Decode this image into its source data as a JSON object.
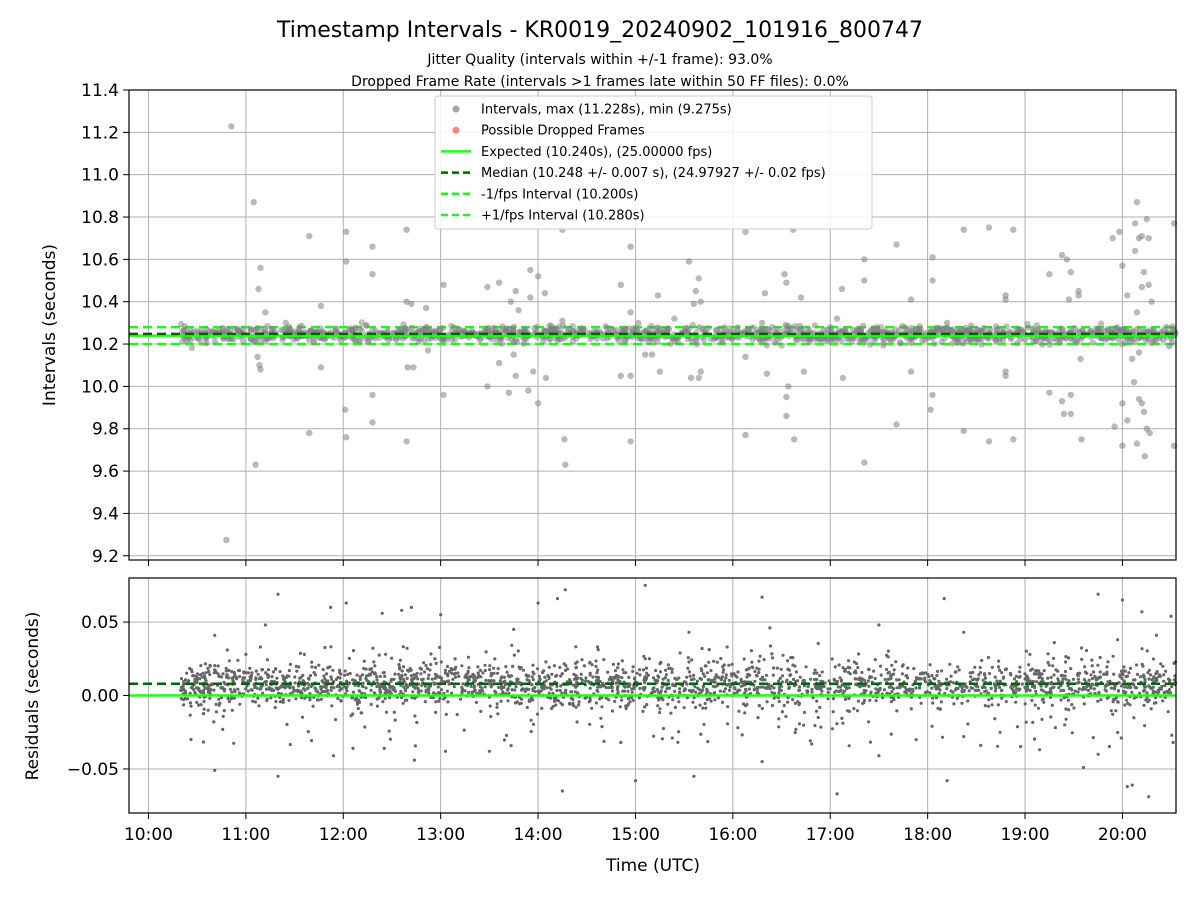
{
  "title": "Timestamp Intervals - KR0019_20240902_101916_800747",
  "subtitle_1": "Jitter Quality (intervals within +/-1 frame): 93.0%",
  "subtitle_2": "Dropped Frame Rate (intervals >1 frames late within 50 FF files): 0.0%",
  "colors": {
    "points": "#808080",
    "dropped": "#ff4d4d",
    "expected": "#1aff1a",
    "median": "#006400",
    "band": "#1aff1a",
    "grid": "#b0b0b0"
  },
  "chart_data": [
    {
      "type": "scatter",
      "id": "intervals",
      "ylabel": "Intervals (seconds)",
      "ylim": [
        9.18,
        11.4
      ],
      "xlim_hours": [
        9.8,
        20.55
      ],
      "yticks": [
        9.2,
        9.4,
        9.6,
        9.8,
        10.0,
        10.2,
        10.4,
        10.6,
        10.8,
        11.0,
        11.2,
        11.4
      ],
      "ytick_labels": [
        "9.2",
        "9.4",
        "9.6",
        "9.8",
        "10.0",
        "10.2",
        "10.4",
        "10.6",
        "10.8",
        "11.0",
        "11.2",
        "11.4"
      ],
      "grid": true,
      "legend_position": "top-center",
      "legend": [
        {
          "label": "Intervals, max (11.228s), min (9.275s)",
          "kind": "dot",
          "color": "#808080"
        },
        {
          "label": "Possible Dropped Frames",
          "kind": "dot",
          "color": "#ff4d4d"
        },
        {
          "label": "Expected (10.240s), (25.00000 fps)",
          "kind": "solid",
          "color": "#1aff1a"
        },
        {
          "label": "Median (10.248 +/- 0.007 s), (24.97927 +/- 0.02 fps)",
          "kind": "dashed",
          "color": "#006400"
        },
        {
          "label": "-1/fps Interval (10.200s)",
          "kind": "dashed",
          "color": "#1aff1a"
        },
        {
          "label": "+1/fps Interval (10.280s)",
          "kind": "dashed",
          "color": "#1aff1a"
        }
      ],
      "hlines": {
        "expected": 10.24,
        "median": 10.248,
        "minus_fps": 10.2,
        "plus_fps": 10.28
      },
      "data_start_hour": 10.33,
      "max_interval": 11.228,
      "min_interval": 9.275,
      "outliers": [
        [
          10.85,
          11.228
        ],
        [
          10.8,
          9.275
        ],
        [
          11.08,
          10.87
        ],
        [
          11.1,
          9.63
        ],
        [
          11.15,
          10.56
        ],
        [
          11.13,
          10.46
        ],
        [
          11.2,
          10.35
        ],
        [
          11.14,
          10.1
        ],
        [
          11.15,
          10.08
        ],
        [
          11.12,
          10.14
        ],
        [
          11.65,
          10.71
        ],
        [
          11.65,
          9.78
        ],
        [
          11.77,
          10.38
        ],
        [
          11.77,
          10.09
        ],
        [
          12.03,
          10.73
        ],
        [
          12.03,
          10.59
        ],
        [
          12.02,
          9.89
        ],
        [
          12.03,
          9.76
        ],
        [
          12.3,
          10.66
        ],
        [
          12.3,
          10.53
        ],
        [
          12.3,
          9.96
        ],
        [
          12.3,
          9.83
        ],
        [
          12.65,
          10.74
        ],
        [
          12.65,
          10.4
        ],
        [
          12.66,
          10.09
        ],
        [
          12.65,
          9.74
        ],
        [
          12.7,
          10.39
        ],
        [
          12.72,
          10.09
        ],
        [
          12.85,
          10.37
        ],
        [
          12.87,
          10.17
        ],
        [
          13.03,
          10.48
        ],
        [
          13.03,
          9.96
        ],
        [
          13.48,
          10.47
        ],
        [
          13.48,
          10.0
        ],
        [
          13.6,
          10.49
        ],
        [
          13.6,
          10.11
        ],
        [
          13.7,
          9.97
        ],
        [
          13.72,
          10.4
        ],
        [
          13.77,
          10.45
        ],
        [
          13.77,
          10.05
        ],
        [
          13.8,
          10.36
        ],
        [
          13.75,
          10.15
        ],
        [
          13.92,
          10.55
        ],
        [
          13.92,
          10.42
        ],
        [
          13.95,
          10.07
        ],
        [
          13.9,
          9.98
        ],
        [
          14.0,
          9.92
        ],
        [
          14.0,
          10.52
        ],
        [
          14.07,
          10.44
        ],
        [
          14.08,
          10.04
        ],
        [
          14.25,
          10.74
        ],
        [
          14.27,
          9.75
        ],
        [
          14.28,
          9.63
        ],
        [
          14.25,
          10.31
        ],
        [
          14.85,
          10.48
        ],
        [
          14.85,
          10.05
        ],
        [
          14.95,
          10.66
        ],
        [
          14.95,
          10.35
        ],
        [
          14.95,
          10.05
        ],
        [
          14.95,
          9.74
        ],
        [
          15.03,
          10.3
        ],
        [
          15.1,
          10.15
        ],
        [
          15.17,
          10.15
        ],
        [
          15.23,
          10.43
        ],
        [
          15.25,
          10.07
        ],
        [
          15.4,
          10.32
        ],
        [
          15.55,
          10.59
        ],
        [
          15.57,
          10.04
        ],
        [
          15.6,
          10.39
        ],
        [
          15.62,
          10.45
        ],
        [
          15.65,
          10.51
        ],
        [
          15.65,
          10.04
        ],
        [
          15.67,
          10.07
        ],
        [
          15.67,
          10.4
        ],
        [
          16.13,
          10.73
        ],
        [
          16.13,
          10.14
        ],
        [
          16.13,
          9.77
        ],
        [
          16.3,
          10.3
        ],
        [
          16.33,
          10.44
        ],
        [
          16.35,
          10.06
        ],
        [
          16.53,
          10.53
        ],
        [
          16.55,
          10.49
        ],
        [
          16.55,
          9.95
        ],
        [
          16.55,
          9.86
        ],
        [
          16.57,
          10.0
        ],
        [
          16.63,
          9.75
        ],
        [
          16.62,
          10.74
        ],
        [
          16.7,
          10.42
        ],
        [
          16.73,
          10.07
        ],
        [
          17.07,
          10.32
        ],
        [
          17.12,
          10.46
        ],
        [
          17.13,
          10.04
        ],
        [
          17.35,
          10.6
        ],
        [
          17.35,
          9.64
        ],
        [
          17.35,
          10.5
        ],
        [
          17.68,
          10.67
        ],
        [
          17.68,
          9.82
        ],
        [
          17.83,
          10.41
        ],
        [
          17.83,
          10.07
        ],
        [
          18.05,
          10.61
        ],
        [
          18.05,
          10.5
        ],
        [
          18.05,
          9.96
        ],
        [
          18.03,
          9.89
        ],
        [
          18.2,
          10.3
        ],
        [
          18.37,
          10.74
        ],
        [
          18.37,
          9.79
        ],
        [
          18.63,
          10.75
        ],
        [
          18.63,
          9.74
        ],
        [
          18.8,
          10.43
        ],
        [
          18.8,
          10.41
        ],
        [
          18.8,
          10.07
        ],
        [
          18.8,
          10.05
        ],
        [
          18.88,
          10.74
        ],
        [
          18.88,
          9.75
        ],
        [
          19.25,
          10.53
        ],
        [
          19.25,
          9.97
        ],
        [
          19.38,
          10.62
        ],
        [
          19.38,
          9.93
        ],
        [
          19.4,
          9.87
        ],
        [
          19.43,
          10.6
        ],
        [
          19.45,
          10.41
        ],
        [
          19.47,
          10.54
        ],
        [
          19.47,
          9.96
        ],
        [
          19.47,
          9.87
        ],
        [
          19.55,
          10.43
        ],
        [
          19.55,
          10.45
        ],
        [
          19.57,
          10.13
        ],
        [
          19.58,
          9.75
        ],
        [
          19.9,
          10.7
        ],
        [
          19.92,
          9.81
        ],
        [
          19.97,
          10.73
        ],
        [
          20.0,
          10.57
        ],
        [
          20.0,
          9.92
        ],
        [
          20.0,
          9.72
        ],
        [
          20.05,
          10.43
        ],
        [
          20.1,
          10.13
        ],
        [
          20.13,
          10.77
        ],
        [
          20.13,
          10.64
        ],
        [
          20.17,
          10.7
        ],
        [
          20.17,
          9.94
        ],
        [
          20.12,
          10.02
        ],
        [
          20.15,
          9.73
        ],
        [
          20.2,
          10.71
        ],
        [
          20.22,
          10.54
        ],
        [
          20.22,
          9.88
        ],
        [
          20.23,
          9.67
        ],
        [
          20.25,
          10.79
        ],
        [
          20.25,
          9.8
        ],
        [
          20.27,
          10.7
        ],
        [
          20.27,
          10.48
        ],
        [
          20.3,
          10.4
        ],
        [
          20.28,
          9.78
        ],
        [
          20.2,
          10.47
        ],
        [
          20.15,
          10.87
        ],
        [
          20.2,
          9.92
        ],
        [
          20.53,
          10.77
        ],
        [
          20.53,
          9.72
        ],
        [
          20.45,
          10.28
        ],
        [
          20.4,
          10.25
        ],
        [
          20.17,
          10.16
        ],
        [
          20.15,
          10.35
        ],
        [
          20.05,
          9.84
        ],
        [
          20.48,
          10.19
        ],
        [
          20.42,
          10.22
        ]
      ],
      "xticks_hours": [
        10,
        11,
        12,
        13,
        14,
        15,
        16,
        17,
        18,
        19,
        20
      ]
    },
    {
      "type": "scatter",
      "id": "residuals",
      "ylabel": "Residuals (seconds)",
      "xlabel": "Time (UTC)",
      "ylim": [
        -0.08,
        0.08
      ],
      "xlim_hours": [
        9.8,
        20.55
      ],
      "yticks": [
        -0.05,
        0.0,
        0.05
      ],
      "ytick_labels": [
        "−0.05",
        "0.00",
        "0.05"
      ],
      "grid": true,
      "hlines": {
        "zero": 0.0,
        "median_offset": 0.008
      },
      "xticks_hours": [
        10,
        11,
        12,
        13,
        14,
        15,
        16,
        17,
        18,
        19,
        20
      ],
      "xtick_labels": [
        "10:00",
        "11:00",
        "12:00",
        "13:00",
        "14:00",
        "15:00",
        "16:00",
        "17:00",
        "18:00",
        "19:00",
        "20:00"
      ],
      "data_start_hour": 10.33,
      "outliers": [
        [
          10.68,
          0.041
        ],
        [
          10.68,
          -0.051
        ],
        [
          11.0,
          0.028
        ],
        [
          11.2,
          0.048
        ],
        [
          11.33,
          0.069
        ],
        [
          11.33,
          -0.055
        ],
        [
          11.87,
          0.06
        ],
        [
          11.9,
          -0.041
        ],
        [
          12.03,
          0.063
        ],
        [
          12.1,
          -0.036
        ],
        [
          12.4,
          0.056
        ],
        [
          12.42,
          -0.036
        ],
        [
          12.6,
          0.058
        ],
        [
          12.7,
          0.06
        ],
        [
          12.73,
          -0.044
        ],
        [
          13.0,
          0.055
        ],
        [
          13.05,
          -0.038
        ],
        [
          13.5,
          -0.038
        ],
        [
          13.75,
          0.045
        ],
        [
          14.0,
          0.063
        ],
        [
          14.2,
          0.066
        ],
        [
          14.28,
          0.072
        ],
        [
          14.25,
          -0.065
        ],
        [
          14.85,
          -0.032
        ],
        [
          15.1,
          0.075
        ],
        [
          15.0,
          -0.058
        ],
        [
          15.55,
          0.043
        ],
        [
          15.6,
          -0.055
        ],
        [
          16.3,
          0.067
        ],
        [
          16.3,
          -0.045
        ],
        [
          16.38,
          0.046
        ],
        [
          17.07,
          -0.067
        ],
        [
          17.5,
          0.048
        ],
        [
          17.5,
          -0.041
        ],
        [
          18.17,
          0.066
        ],
        [
          18.2,
          -0.058
        ],
        [
          18.37,
          0.043
        ],
        [
          18.37,
          -0.028
        ],
        [
          19.05,
          0.028
        ],
        [
          19.15,
          -0.037
        ],
        [
          19.6,
          -0.049
        ],
        [
          19.75,
          0.069
        ],
        [
          19.75,
          -0.04
        ],
        [
          20.0,
          0.065
        ],
        [
          20.05,
          -0.062
        ],
        [
          20.1,
          -0.061
        ],
        [
          20.2,
          0.057
        ],
        [
          20.27,
          -0.069
        ],
        [
          20.5,
          0.054
        ],
        [
          20.52,
          -0.032
        ],
        [
          20.47,
          -0.011
        ],
        [
          20.35,
          0.041
        ],
        [
          19.95,
          0.038
        ],
        [
          19.3,
          0.036
        ]
      ]
    }
  ]
}
